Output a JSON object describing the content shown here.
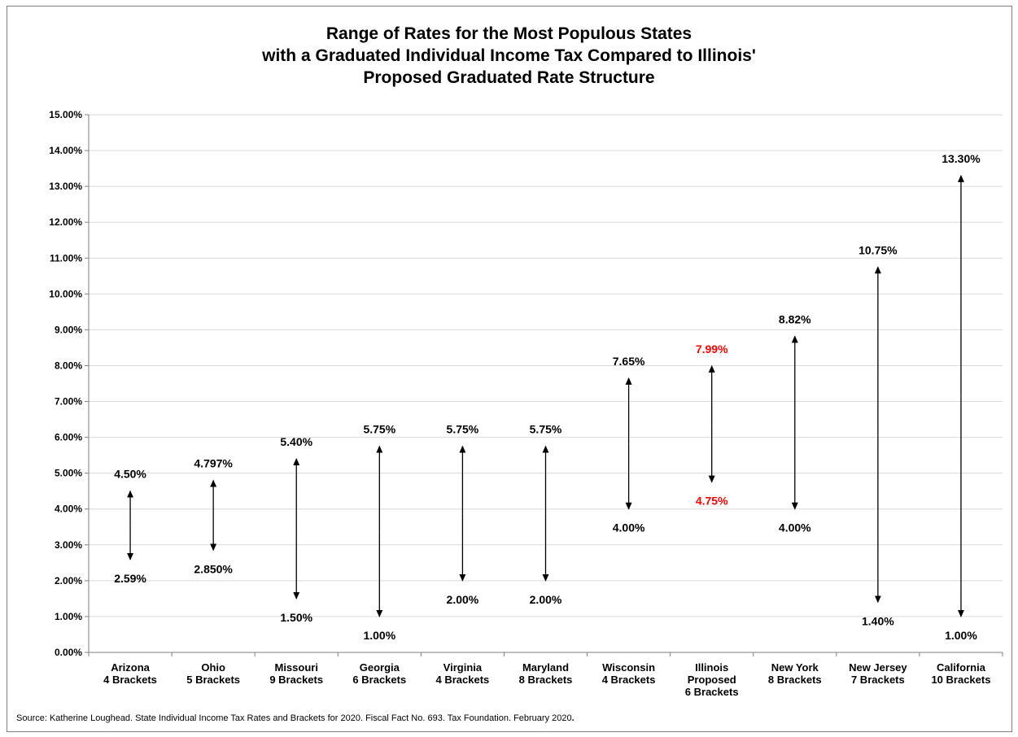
{
  "chart_data": {
    "type": "range",
    "title_lines": [
      "Range of Rates for the Most Populous States",
      "with a Graduated Individual Income Tax Compared to Illinois'",
      "Proposed Graduated Rate Structure"
    ],
    "xlabel": "",
    "ylabel": "",
    "ylim": [
      0,
      15
    ],
    "y_ticks": [
      0,
      1,
      2,
      3,
      4,
      5,
      6,
      7,
      8,
      9,
      10,
      11,
      12,
      13,
      14,
      15
    ],
    "y_tick_labels": [
      "0.00%",
      "1.00%",
      "2.00%",
      "3.00%",
      "4.00%",
      "5.00%",
      "6.00%",
      "7.00%",
      "8.00%",
      "9.00%",
      "10.00%",
      "11.00%",
      "12.00%",
      "13.00%",
      "14.00%",
      "15.00%"
    ],
    "grid": true,
    "legend": "none",
    "colors": {
      "default": "#000000",
      "highlight": "#ff0000",
      "grid": "#d9d9d9",
      "axis": "#7f7f7f"
    },
    "categories": [
      {
        "label_lines": [
          "Arizona",
          "4 Brackets"
        ],
        "low": 2.59,
        "high": 4.5,
        "low_label": "2.59%",
        "high_label": "4.50%",
        "highlight": false
      },
      {
        "label_lines": [
          "Ohio",
          "5 Brackets"
        ],
        "low": 2.85,
        "high": 4.797,
        "low_label": "2.850%",
        "high_label": "4.797%",
        "highlight": false
      },
      {
        "label_lines": [
          "Missouri",
          "9 Brackets"
        ],
        "low": 1.5,
        "high": 5.4,
        "low_label": "1.50%",
        "high_label": "5.40%",
        "highlight": false
      },
      {
        "label_lines": [
          "Georgia",
          "6 Brackets"
        ],
        "low": 1.0,
        "high": 5.75,
        "low_label": "1.00%",
        "high_label": "5.75%",
        "highlight": false
      },
      {
        "label_lines": [
          "Virginia",
          "4  Brackets"
        ],
        "low": 2.0,
        "high": 5.75,
        "low_label": "2.00%",
        "high_label": "5.75%",
        "highlight": false
      },
      {
        "label_lines": [
          "Maryland",
          "8 Brackets"
        ],
        "low": 2.0,
        "high": 5.75,
        "low_label": "2.00%",
        "high_label": "5.75%",
        "highlight": false
      },
      {
        "label_lines": [
          "Wisconsin",
          "4 Brackets"
        ],
        "low": 4.0,
        "high": 7.65,
        "low_label": "4.00%",
        "high_label": "7.65%",
        "highlight": false
      },
      {
        "label_lines": [
          "Illinois",
          "Proposed",
          "6 Brackets"
        ],
        "low": 4.75,
        "high": 7.99,
        "low_label": "4.75%",
        "high_label": "7.99%",
        "highlight": true
      },
      {
        "label_lines": [
          "New York",
          "8 Brackets"
        ],
        "low": 4.0,
        "high": 8.82,
        "low_label": "4.00%",
        "high_label": "8.82%",
        "highlight": false
      },
      {
        "label_lines": [
          "New Jersey",
          "7 Brackets"
        ],
        "low": 1.4,
        "high": 10.75,
        "low_label": "1.40%",
        "high_label": "10.75%",
        "highlight": false
      },
      {
        "label_lines": [
          "California",
          "10 Brackets"
        ],
        "low": 1.0,
        "high": 13.3,
        "low_label": "1.00%",
        "high_label": "13.30%",
        "highlight": false
      }
    ]
  },
  "source_text": "Source: Katherine Loughead. State Individual Income Tax Rates and Brackets for 2020. Fiscal Fact No. 693. Tax Foundation. February 2020",
  "source_period": "."
}
